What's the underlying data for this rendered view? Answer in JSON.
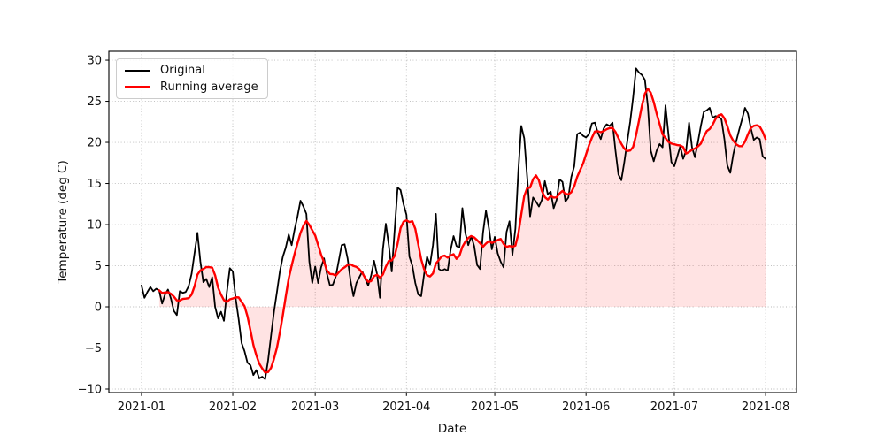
{
  "chart_data": {
    "type": "line",
    "title": "",
    "xlabel": "Date",
    "ylabel": "Temperature (deg C)",
    "x_start_date": "2021-01-01",
    "x_end_date": "2021-08-01",
    "cadence": "daily",
    "xlim_days": [
      -11.1,
      222.5
    ],
    "ylim": [
      -10.43,
      31.08
    ],
    "x_tick_labels": [
      "2021-01",
      "2021-02",
      "2021-03",
      "2021-04",
      "2021-05",
      "2021-06",
      "2021-07",
      "2021-08"
    ],
    "x_tick_day_offsets": [
      0,
      31,
      59,
      90,
      120,
      151,
      181,
      212
    ],
    "y_ticks": [
      -10,
      -5,
      0,
      5,
      10,
      15,
      20,
      25,
      30
    ],
    "y_tick_labels": [
      "−10",
      "−5",
      "0",
      "5",
      "10",
      "15",
      "20",
      "25",
      "30"
    ],
    "grid": {
      "style": "dotted",
      "color": "#b9b9b9"
    },
    "legend": {
      "position": "upper left",
      "labels": [
        "Original",
        "Running average"
      ]
    },
    "series": [
      {
        "name": "Original",
        "color": "#000000",
        "line_width": 1.8,
        "values": [
          2.6,
          1.1,
          1.8,
          2.4,
          1.9,
          2.2,
          2.0,
          0.4,
          1.5,
          2.1,
          1.0,
          -0.5,
          -1.0,
          1.9,
          1.7,
          1.8,
          2.5,
          4.0,
          6.5,
          9.0,
          5.5,
          3.0,
          3.4,
          2.4,
          3.6,
          0.0,
          -1.4,
          -0.6,
          -1.7,
          1.8,
          4.7,
          4.3,
          1.0,
          -1.5,
          -4.4,
          -5.4,
          -6.8,
          -7.1,
          -8.3,
          -7.7,
          -8.7,
          -8.5,
          -8.8,
          -6.5,
          -3.5,
          -0.6,
          1.8,
          4.3,
          6.1,
          7.2,
          8.8,
          7.5,
          9.4,
          11.0,
          12.9,
          12.2,
          11.3,
          5.5,
          2.9,
          4.9,
          2.9,
          4.8,
          5.9,
          4.0,
          2.6,
          2.7,
          3.7,
          5.6,
          7.5,
          7.6,
          5.9,
          3.2,
          1.3,
          2.9,
          3.6,
          4.3,
          3.4,
          2.6,
          3.8,
          5.6,
          4.0,
          1.1,
          7.0,
          10.1,
          7.5,
          4.3,
          9.4,
          14.5,
          14.2,
          12.5,
          11.2,
          6.1,
          5.0,
          2.9,
          1.5,
          1.3,
          4.0,
          6.1,
          5.1,
          7.5,
          11.3,
          4.6,
          4.4,
          4.6,
          4.4,
          6.9,
          8.6,
          7.4,
          7.2,
          12.0,
          9.0,
          7.5,
          8.6,
          7.4,
          5.1,
          4.6,
          9.0,
          11.7,
          9.6,
          7.0,
          8.5,
          6.5,
          5.5,
          4.8,
          9.1,
          10.4,
          6.3,
          9.5,
          16.5,
          22.0,
          20.5,
          15.8,
          11.0,
          13.3,
          12.8,
          12.2,
          13.0,
          15.3,
          13.7,
          14.0,
          12.0,
          13.0,
          15.5,
          15.2,
          12.8,
          13.3,
          15.8,
          17.1,
          21.0,
          21.2,
          20.8,
          20.6,
          21.0,
          22.3,
          22.4,
          21.2,
          20.4,
          21.7,
          22.2,
          22.0,
          22.4,
          19.0,
          16.1,
          15.4,
          17.6,
          20.1,
          22.5,
          25.5,
          29.0,
          28.5,
          28.2,
          27.6,
          24.4,
          19.0,
          17.7,
          19.0,
          19.8,
          19.4,
          24.5,
          21.0,
          17.6,
          17.1,
          18.3,
          19.5,
          18.0,
          19.0,
          22.4,
          19.4,
          18.2,
          20.0,
          22.0,
          23.7,
          23.9,
          24.2,
          23.0,
          23.2,
          23.1,
          22.8,
          20.4,
          17.2,
          16.3,
          18.5,
          20.1,
          21.5,
          22.8,
          24.2,
          23.5,
          21.7,
          20.3,
          20.6,
          20.4,
          18.3,
          18.0
        ]
      },
      {
        "name": "Running average",
        "color": "#ff0000",
        "line_width": 2.4,
        "derived": "trailing_mean_of_original",
        "window_days": 7,
        "fill_between_zero": true,
        "fill_color": "rgba(255,0,0,0.11)"
      }
    ]
  }
}
